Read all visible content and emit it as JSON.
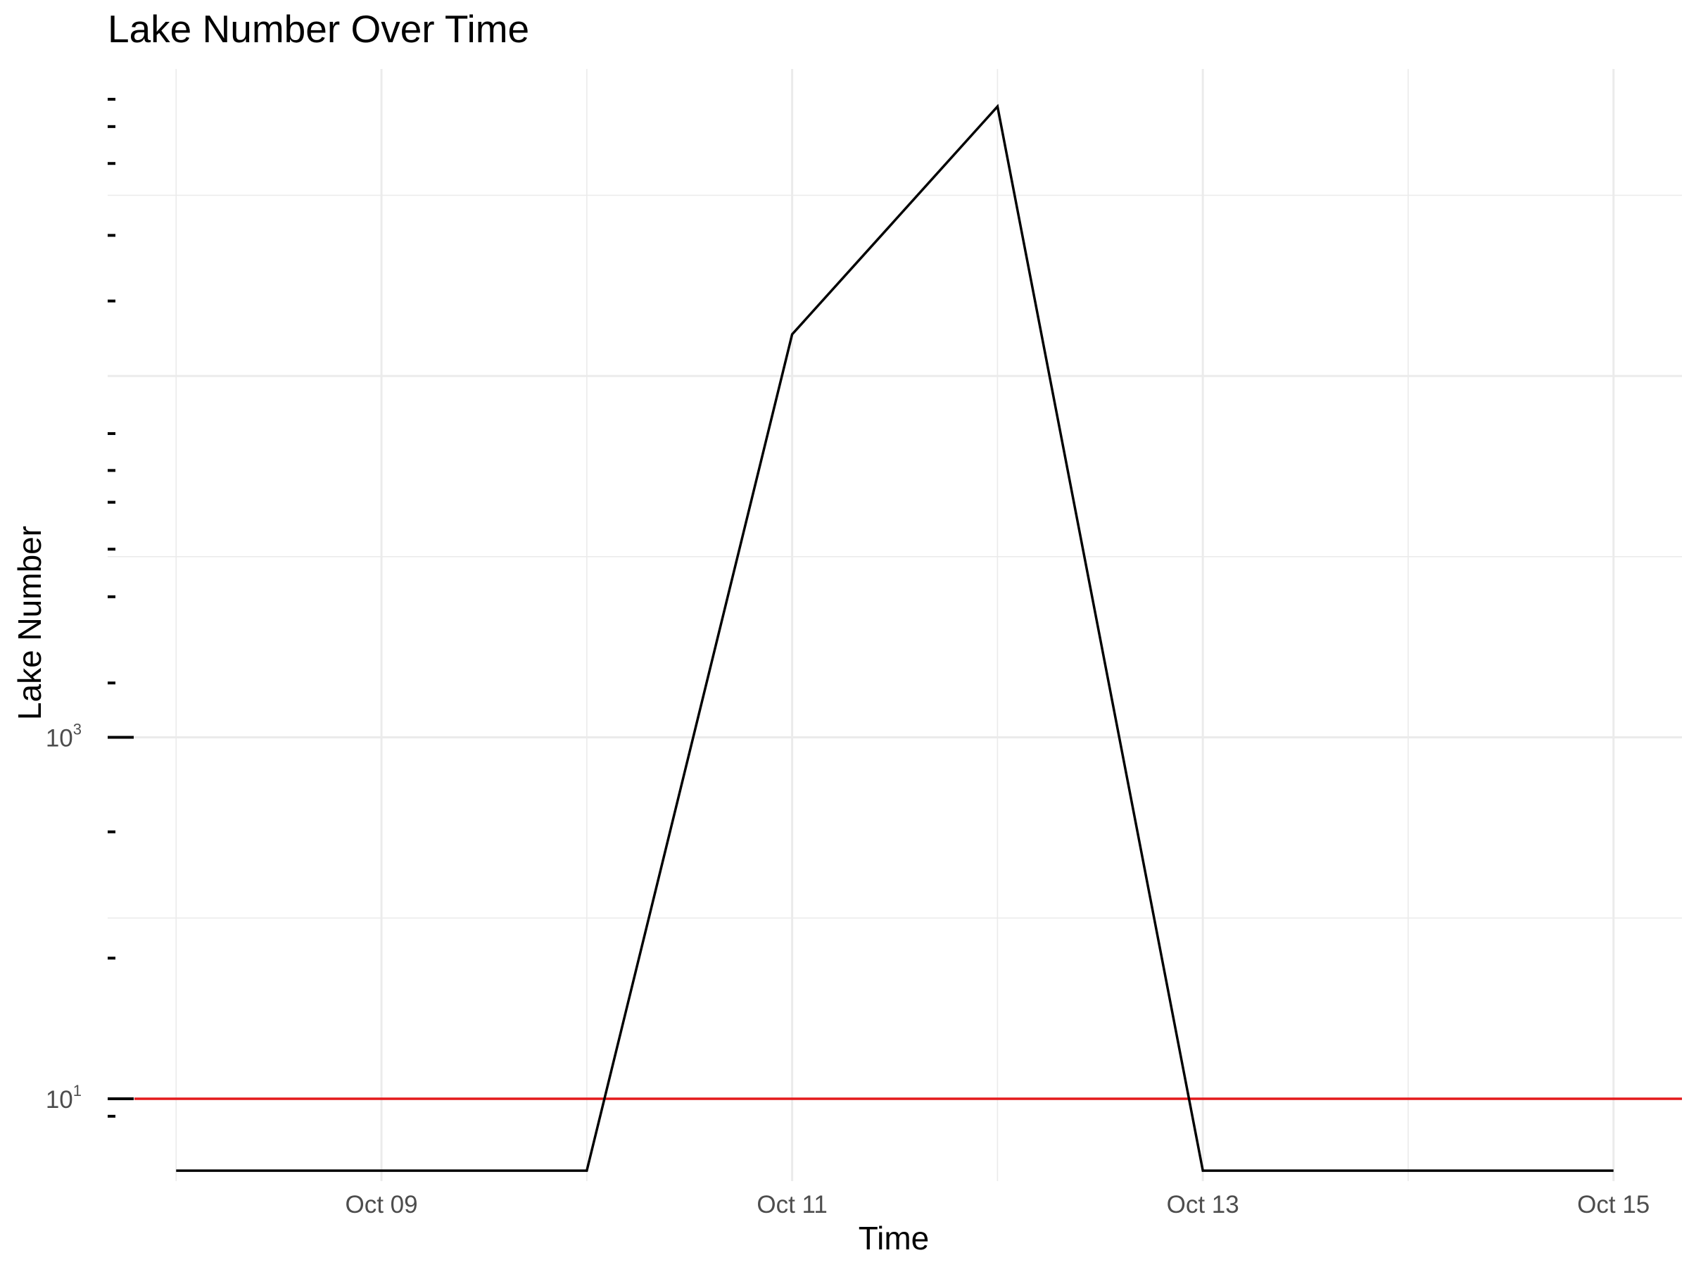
{
  "chart_data": {
    "type": "line",
    "title": "Lake Number Over Time",
    "xlabel": "Time",
    "ylabel": "Lake Number",
    "x_ticks": [
      "Oct 09",
      "Oct 11",
      "Oct 13",
      "Oct 15"
    ],
    "y_ticks": [
      {
        "base": "10",
        "exp": "1",
        "value": 10
      },
      {
        "base": "10",
        "exp": "3",
        "value": 1000
      }
    ],
    "y_scale": "log10",
    "xlim": [
      "2023-10-07 16:00",
      "2023-10-15 08:00"
    ],
    "ylim": [
      3.5,
      5000000
    ],
    "grid": true,
    "series": [
      {
        "color": "#000000",
        "x": [
          "2023-10-08",
          "2023-10-09",
          "2023-10-10",
          "2023-10-11",
          "2023-10-12",
          "2023-10-13",
          "2023-10-14",
          "2023-10-15"
        ],
        "y": [
          4,
          4,
          4,
          170000,
          3100000,
          4,
          4,
          4
        ]
      }
    ],
    "reference_line": {
      "y": 10,
      "color": "#e41a1c"
    },
    "rug_y": [
      8,
      60,
      300,
      2000,
      6000,
      11000,
      20000,
      30000,
      48000,
      260000,
      600000,
      1500000,
      2400000,
      3400000
    ]
  }
}
